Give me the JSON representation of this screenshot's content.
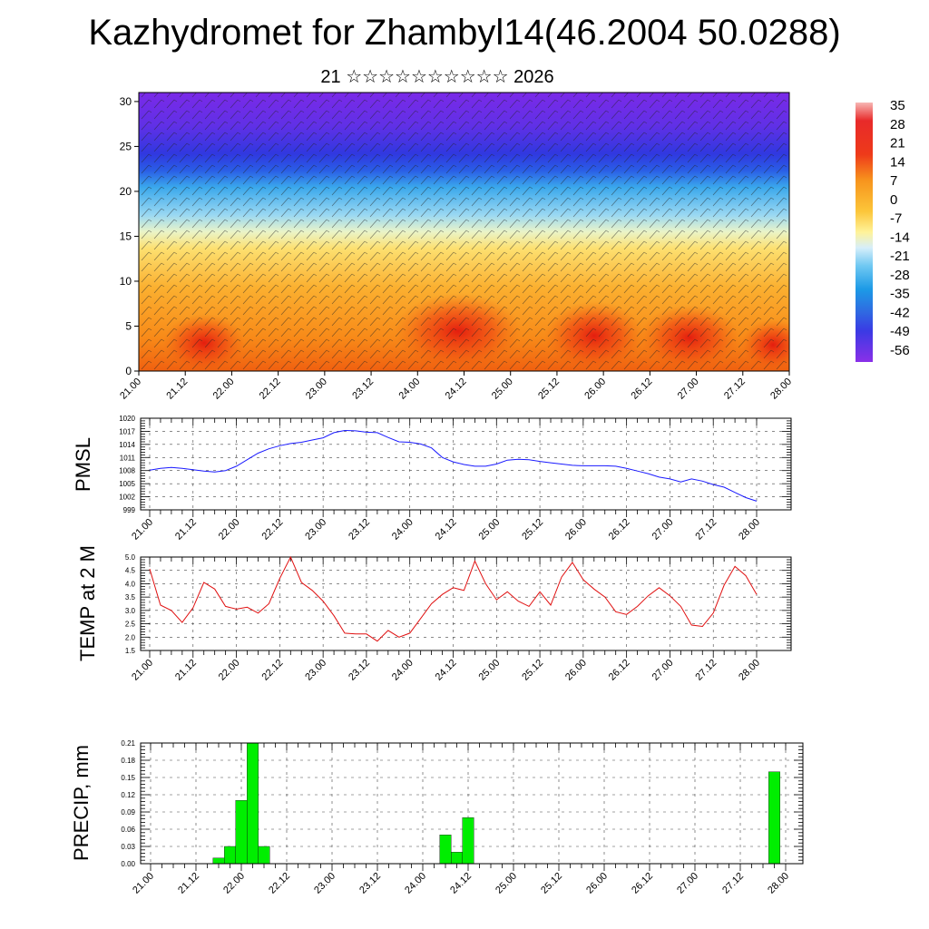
{
  "title": "Kazhydromet for Zhambyl14(46.2004 50.0288)",
  "subtitle": "21 ☆☆☆☆☆☆☆☆☆☆ 2026",
  "chart_data": [
    {
      "type": "heatmap",
      "description_note": "",
      "y_ticks": [
        "0",
        "5",
        "10",
        "15",
        "20",
        "25",
        "30"
      ],
      "ylim": [
        0,
        31
      ],
      "x_ticks": [
        "21.00",
        "21.12",
        "22.00",
        "22.12",
        "23.00",
        "23.12",
        "24.00",
        "24.12",
        "25.00",
        "25.12",
        "26.00",
        "26.12",
        "27.00",
        "27.12",
        "28.00"
      ],
      "colorbar_labels": [
        "35",
        "28",
        "21",
        "14",
        "7",
        "0",
        "-7",
        "-14",
        "-21",
        "-28",
        "-35",
        "-42",
        "-49",
        "-56"
      ],
      "colors": {
        "warm": "#e8201a",
        "orange": "#f7941d",
        "yellow": "#fff7a8",
        "light_blue": "#8fd4f2",
        "blue": "#2a6fe0",
        "purple": "#6a24e8"
      }
    },
    {
      "type": "line",
      "ylabel": "PMSL",
      "y_ticks": [
        "999",
        "1002",
        "1005",
        "1008",
        "1011",
        "1014",
        "1017",
        "1020"
      ],
      "ylim": [
        999,
        1020
      ],
      "x_ticks": [
        "21.00",
        "21.12",
        "22.00",
        "22.12",
        "23.00",
        "23.12",
        "24.00",
        "24.12",
        "25.00",
        "25.12",
        "26.00",
        "26.12",
        "27.00",
        "27.12",
        "28.00"
      ],
      "color": "#1a1aff",
      "x": [
        0,
        3,
        6,
        9,
        12,
        15,
        18,
        21,
        24,
        27,
        30,
        33,
        36,
        39,
        42,
        45,
        48,
        51,
        54,
        57,
        60,
        63,
        66,
        69,
        72,
        75,
        78,
        81,
        84,
        87,
        90,
        93,
        96,
        99,
        102,
        105,
        108,
        111,
        114,
        117,
        120,
        123,
        126,
        129,
        132,
        135,
        138,
        141,
        144,
        147,
        150,
        153,
        156,
        159,
        162,
        165,
        168
      ],
      "values": [
        1008.1,
        1008.5,
        1008.7,
        1008.5,
        1008.2,
        1007.9,
        1007.7,
        1008.0,
        1009.0,
        1010.5,
        1012.0,
        1013.0,
        1013.7,
        1014.2,
        1014.5,
        1015.0,
        1015.5,
        1016.7,
        1017.2,
        1017.1,
        1016.8,
        1016.7,
        1015.6,
        1014.6,
        1014.5,
        1014.1,
        1013.2,
        1011.0,
        1010.0,
        1009.4,
        1009.0,
        1009.0,
        1009.5,
        1010.4,
        1010.6,
        1010.5,
        1010.1,
        1009.8,
        1009.5,
        1009.2,
        1009.1,
        1009.1,
        1009.1,
        1009.0,
        1008.5,
        1007.9,
        1007.3,
        1006.5,
        1006.1,
        1005.4,
        1006.1,
        1005.6,
        1004.8,
        1004.2,
        1003.0,
        1001.8,
        1001.0
      ]
    },
    {
      "type": "line",
      "ylabel": "TEMP at 2 M",
      "y_ticks": [
        "1.5",
        "2.0",
        "2.5",
        "3.0",
        "3.5",
        "4.0",
        "4.5",
        "5.0"
      ],
      "ylim": [
        1.5,
        5.0
      ],
      "x_ticks": [
        "21.00",
        "21.12",
        "22.00",
        "22.12",
        "23.00",
        "23.12",
        "24.00",
        "24.12",
        "25.00",
        "25.12",
        "26.00",
        "26.12",
        "27.00",
        "27.12",
        "28.00"
      ],
      "color": "#e01010",
      "x": [
        0,
        3,
        6,
        9,
        12,
        15,
        18,
        21,
        24,
        27,
        30,
        33,
        36,
        39,
        42,
        45,
        48,
        51,
        54,
        57,
        60,
        63,
        66,
        69,
        72,
        75,
        78,
        81,
        84,
        87,
        90,
        93,
        96,
        99,
        102,
        105,
        108,
        111,
        114,
        117,
        120,
        123,
        126,
        129,
        132,
        135,
        138,
        141,
        144,
        147,
        150,
        153,
        156,
        159,
        162,
        165,
        168
      ],
      "values": [
        4.55,
        3.2,
        3.0,
        2.55,
        3.1,
        4.05,
        3.8,
        3.15,
        3.05,
        3.12,
        2.9,
        3.25,
        4.2,
        5.0,
        4.05,
        3.75,
        3.35,
        2.8,
        2.15,
        2.12,
        2.12,
        1.85,
        2.25,
        2.0,
        2.15,
        2.7,
        3.25,
        3.6,
        3.85,
        3.75,
        4.85,
        4.0,
        3.4,
        3.7,
        3.35,
        3.15,
        3.7,
        3.2,
        4.25,
        4.8,
        4.15,
        3.8,
        3.5,
        2.95,
        2.85,
        3.15,
        3.55,
        3.85,
        3.55,
        3.15,
        2.45,
        2.4,
        2.9,
        3.95,
        4.65,
        4.3,
        3.6
      ]
    },
    {
      "type": "bar",
      "ylabel": "PRECIP, mm",
      "y_ticks": [
        "0.00",
        "0.03",
        "0.06",
        "0.09",
        "0.12",
        "0.15",
        "0.18",
        "0.21"
      ],
      "ylim": [
        0,
        0.21
      ],
      "x_ticks": [
        "21.00",
        "21.12",
        "22.00",
        "22.12",
        "23.00",
        "23.12",
        "24.00",
        "24.12",
        "25.00",
        "25.12",
        "26.00",
        "26.12",
        "27.00",
        "27.12",
        "28.00"
      ],
      "color": "#00ee00",
      "x": [
        18,
        21,
        24,
        27,
        30,
        78,
        81,
        84,
        165
      ],
      "values": [
        0.01,
        0.03,
        0.11,
        0.21,
        0.03,
        0.05,
        0.02,
        0.08,
        0.16
      ]
    }
  ]
}
